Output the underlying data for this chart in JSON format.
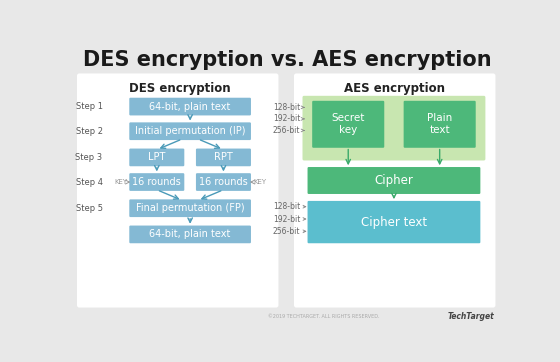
{
  "title": "DES encryption vs. AES encryption",
  "title_fontsize": 15,
  "bg_color": "#e8e8e8",
  "panel_bg": "#f5f5f5",
  "des_title": "DES encryption",
  "aes_title": "AES encryption",
  "des_box_color": "#84b9d4",
  "aes_green_light": "#c8e6b0",
  "aes_green_dark": "#4db87a",
  "aes_teal": "#5bbece",
  "arrow_color": "#3aaa6a",
  "des_arrow_color": "#4a9ab8",
  "step_color": "#555555",
  "label_color": "#666666",
  "key_color": "#999999",
  "watermark": "TechTarget",
  "copyright": "©2019 TECHTARGET. ALL RIGHTS RESERVED."
}
